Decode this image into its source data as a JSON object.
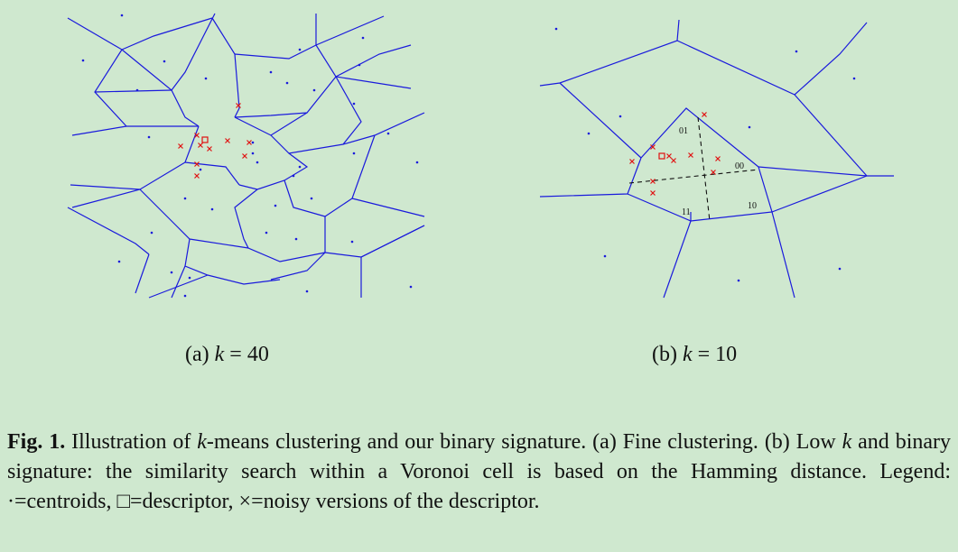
{
  "subcaptions": {
    "a": {
      "label": "(a) ",
      "var": "k",
      "rest": " = 40"
    },
    "b": {
      "label": "(b) ",
      "var": "k",
      "rest": " = 10"
    }
  },
  "cell_labels": [
    "01",
    "00",
    "10",
    "11"
  ],
  "caption": {
    "fig_label": "Fig. 1.",
    "part1": " Illustration of ",
    "k": "k",
    "part2": "-means clustering and our binary signature. (a) Fine clustering. (b) Low ",
    "part3": " and binary signature: the similarity search within a Voronoi cell is based on the Hamming distance. Legend: ·=centroids, □=descriptor, ×=noisy versions of the descriptor."
  },
  "colors": {
    "edges": "#1a1adc",
    "centroids": "#1a1adc",
    "noise": "#e01010",
    "background": "#cfe8cf"
  }
}
